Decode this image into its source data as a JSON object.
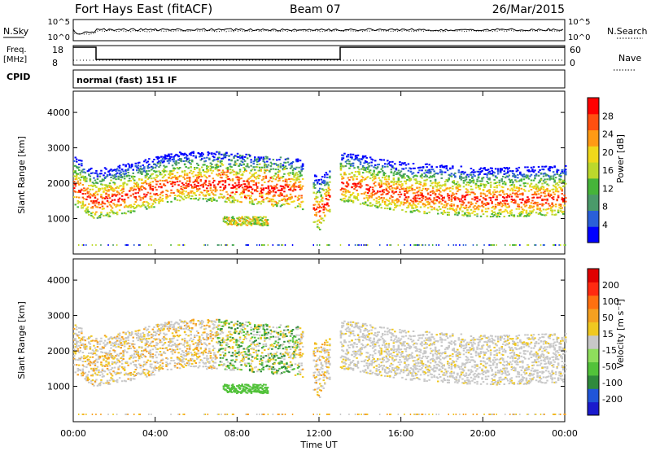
{
  "header": {
    "station": "Fort Hays East (fitACF)",
    "beam": "Beam 07",
    "date": "26/Mar/2015"
  },
  "status_panels": {
    "nsky_label": "N.Sky",
    "nsearch_label": "N.Search",
    "freq_label_1": "Freq.",
    "freq_label_2": "[MHz]",
    "nave_label": "Nave",
    "cpid_label": "CPID",
    "cpid_text": "normal (fast) 151 IF",
    "noise_ticks": [
      "10^5",
      "10^0"
    ],
    "noise_ticks_right": [
      "10^5",
      "10^0"
    ],
    "freq_ticks": [
      "18",
      "8"
    ],
    "nave_ticks": [
      "60",
      "0"
    ]
  },
  "axes": {
    "ylabel": "Slant Range [km]",
    "xlabel": "Time UT",
    "x_ticks": [
      "00:00",
      "04:00",
      "08:00",
      "12:00",
      "16:00",
      "20:00",
      "00:00"
    ],
    "y_ticks": [
      "4000",
      "3000",
      "2000",
      "1000"
    ]
  },
  "colorbars": {
    "power": {
      "label": "Power [dB]",
      "ticks": [
        "28",
        "24",
        "20",
        "16",
        "12",
        "8",
        "4"
      ],
      "colors": [
        "#0000ff",
        "#2a5fd8",
        "#4a9a6a",
        "#46b43a",
        "#bcd82c",
        "#f0d81a",
        "#ff9a14",
        "#ff5010",
        "#ff0000"
      ]
    },
    "velocity": {
      "label": "Velocity [m s⁻¹]",
      "ticks": [
        "200",
        "100",
        "50",
        "15",
        "-15",
        "-50",
        "-100",
        "-200"
      ],
      "colors": [
        "#1a1acd",
        "#2055d8",
        "#2f8a3c",
        "#52c23a",
        "#8ede5c",
        "#c8c8c8",
        "#f0c820",
        "#f5a020",
        "#ff7010",
        "#ff2a10",
        "#e00000"
      ]
    }
  },
  "chart_data": [
    {
      "type": "heatmap",
      "name": "power",
      "xlim": [
        0,
        24
      ],
      "ylim": [
        0,
        4600
      ],
      "band_center": [
        [
          0,
          1900
        ],
        [
          1,
          1500
        ],
        [
          3,
          1700
        ],
        [
          5,
          2000
        ],
        [
          7,
          2000
        ],
        [
          9,
          1900
        ],
        [
          11,
          1800
        ],
        [
          12,
          1200
        ],
        [
          13,
          2000
        ],
        [
          16,
          1700
        ],
        [
          20,
          1550
        ],
        [
          24,
          1600
        ]
      ]
    },
    {
      "type": "heatmap",
      "name": "velocity",
      "xlim": [
        0,
        24
      ],
      "ylim": [
        0,
        4600
      ],
      "band_center": [
        [
          0,
          1900
        ],
        [
          1,
          1500
        ],
        [
          3,
          1700
        ],
        [
          5,
          2000
        ],
        [
          7,
          2000
        ],
        [
          9,
          1900
        ],
        [
          11,
          1800
        ],
        [
          12,
          1200
        ],
        [
          13,
          2000
        ],
        [
          16,
          1700
        ],
        [
          20,
          1550
        ],
        [
          24,
          1600
        ]
      ]
    }
  ]
}
